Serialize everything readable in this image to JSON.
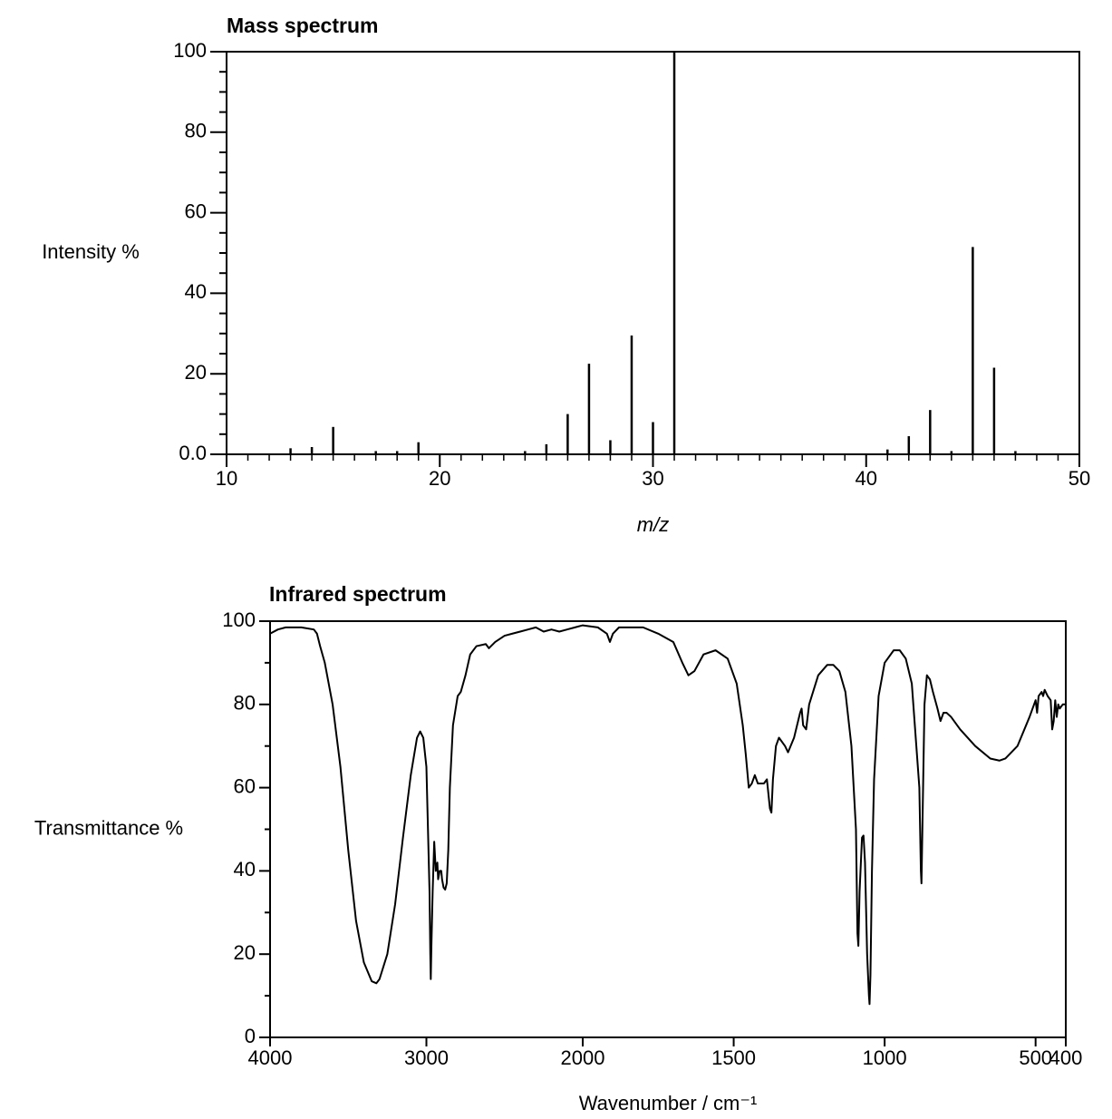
{
  "chart_data": [
    {
      "type": "bar",
      "title": "Mass spectrum",
      "xlabel": "m/z",
      "ylabel": "Intensity %",
      "x": [
        13,
        14,
        15,
        17,
        18,
        19,
        24,
        25,
        26,
        27,
        28,
        29,
        30,
        31,
        41,
        42,
        43,
        44,
        45,
        46,
        47
      ],
      "values": [
        1.5,
        1.8,
        6.8,
        0.8,
        0.8,
        3,
        0.8,
        2.5,
        10,
        22.5,
        3.5,
        29.5,
        8,
        100,
        1.2,
        4.5,
        11,
        0.8,
        51.5,
        21.5,
        0.8
      ],
      "color": "#000000",
      "xlim": [
        10,
        50
      ],
      "ylim": [
        0,
        100
      ],
      "xticks": [
        10,
        20,
        30,
        40,
        50
      ],
      "yticks": [
        {
          "value": 0,
          "label": "0.0"
        },
        20,
        40,
        60,
        80,
        100
      ],
      "xminorticks": [
        11,
        12,
        13,
        14,
        15,
        16,
        17,
        18,
        19,
        21,
        22,
        23,
        24,
        25,
        26,
        27,
        28,
        29,
        31,
        32,
        33,
        34,
        35,
        36,
        37,
        38,
        39,
        41,
        42,
        43,
        44,
        45,
        46,
        47,
        48,
        49
      ],
      "yminorticks": [
        5,
        10,
        15,
        25,
        30,
        35,
        45,
        50,
        55,
        65,
        70,
        75,
        85,
        90,
        95
      ]
    },
    {
      "type": "line",
      "title": "Infrared spectrum",
      "xlabel": "Wavenumber / cm⁻¹",
      "ylabel": "Transmittance %",
      "x": [
        4000,
        3950,
        3900,
        3800,
        3720,
        3700,
        3680,
        3650,
        3600,
        3550,
        3500,
        3450,
        3400,
        3350,
        3320,
        3300,
        3250,
        3200,
        3150,
        3100,
        3060,
        3040,
        3020,
        3000,
        2990,
        2980,
        2975,
        2972,
        2968,
        2960,
        2950,
        2940,
        2930,
        2925,
        2915,
        2905,
        2900,
        2890,
        2880,
        2870,
        2860,
        2850,
        2830,
        2800,
        2780,
        2750,
        2720,
        2680,
        2620,
        2600,
        2560,
        2500,
        2450,
        2400,
        2350,
        2300,
        2250,
        2200,
        2150,
        2100,
        2050,
        2000,
        1950,
        1920,
        1910,
        1900,
        1880,
        1800,
        1750,
        1700,
        1670,
        1650,
        1630,
        1600,
        1560,
        1520,
        1490,
        1470,
        1460,
        1450,
        1440,
        1430,
        1420,
        1400,
        1390,
        1380,
        1375,
        1370,
        1360,
        1350,
        1330,
        1320,
        1300,
        1280,
        1275,
        1270,
        1260,
        1250,
        1220,
        1190,
        1170,
        1150,
        1130,
        1110,
        1095,
        1090,
        1087,
        1083,
        1075,
        1070,
        1065,
        1058,
        1052,
        1050,
        1047,
        1042,
        1035,
        1020,
        1000,
        970,
        950,
        930,
        910,
        895,
        885,
        880,
        878,
        875,
        868,
        860,
        850,
        840,
        825,
        815,
        805,
        795,
        780,
        750,
        700,
        650,
        620,
        600,
        560,
        520,
        500,
        495,
        490,
        480,
        475,
        470,
        460,
        450,
        445,
        440,
        435,
        430,
        425,
        420,
        410,
        400
      ],
      "values": [
        97,
        98,
        98.5,
        98.5,
        98,
        97,
        94,
        90,
        80,
        65,
        45,
        28,
        18,
        13.5,
        13,
        14,
        20,
        32,
        48,
        63,
        72,
        73.5,
        72,
        65,
        50,
        35,
        20,
        14,
        22,
        35,
        47,
        40,
        42,
        38,
        40,
        40,
        38,
        36,
        35.5,
        37,
        45,
        60,
        75,
        82,
        83,
        87,
        92,
        94,
        94.5,
        93.5,
        95,
        96.5,
        97,
        97.5,
        98,
        98.5,
        97.5,
        98,
        97.5,
        98,
        98.5,
        99,
        98.5,
        97,
        95,
        97,
        98.5,
        98.5,
        97,
        95,
        90,
        87,
        88,
        92,
        93,
        91,
        85,
        75,
        68,
        60,
        61,
        63,
        61,
        61,
        62,
        55,
        54,
        62,
        70,
        72,
        70,
        68.5,
        72,
        78,
        79,
        75,
        74,
        80,
        87,
        89.5,
        89.5,
        88,
        83,
        70,
        50,
        25,
        22,
        35,
        48,
        48.5,
        42,
        20,
        10,
        8,
        15,
        40,
        62,
        82,
        90,
        93,
        93,
        91,
        85,
        70,
        60,
        40,
        37,
        50,
        80,
        87,
        86,
        83,
        79,
        76,
        78,
        78,
        77,
        74,
        70,
        67,
        66.5,
        67,
        70,
        77,
        81,
        78,
        82,
        83,
        82,
        83.5,
        82,
        81,
        74,
        76,
        81,
        77,
        80,
        79,
        80,
        80
      ],
      "color": "#000000",
      "xlim": [
        4000,
        400
      ],
      "ylim": [
        0,
        100
      ],
      "xscale_break": 2000,
      "xticks": [
        4000,
        3000,
        2000,
        1500,
        1000,
        500,
        400
      ],
      "yticks": [
        0,
        20,
        40,
        60,
        80,
        100
      ],
      "yminorticks": [
        10,
        30,
        50,
        70,
        90
      ]
    }
  ]
}
